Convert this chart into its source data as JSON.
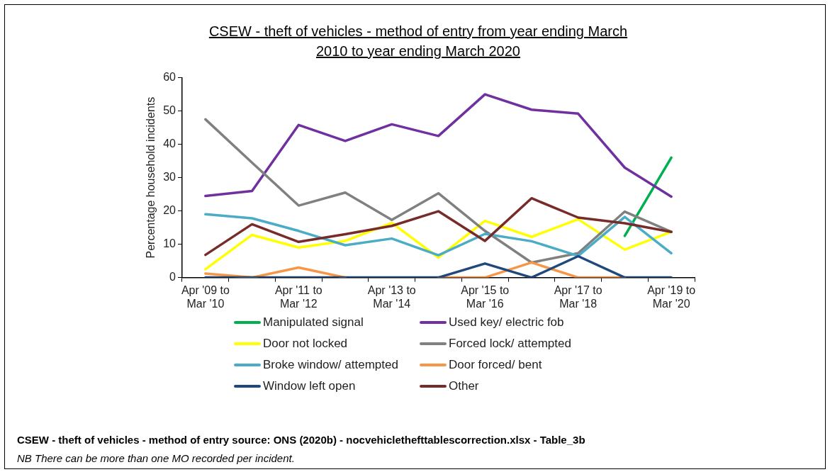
{
  "chart_data": {
    "type": "line",
    "title": "CSEW - theft of vehicles - method of entry from year ending March 2010 to year ending March 2020",
    "ylabel": "Percentage household incidents",
    "categories": [
      "Apr '09 to Mar '10",
      null,
      "Apr '11 to Mar '12",
      null,
      "Apr '13 to Mar '14",
      null,
      "Apr '15 to Mar '16",
      null,
      "Apr '17 to Mar '18",
      null,
      "Apr '19 to Mar '20"
    ],
    "series": [
      {
        "name": "Manipulated signal",
        "color": "#00b050",
        "values": [
          null,
          null,
          null,
          null,
          null,
          null,
          null,
          null,
          null,
          12.5,
          36
        ]
      },
      {
        "name": "Used key/ electric fob",
        "color": "#7030a0",
        "values": [
          24.5,
          26,
          45.8,
          41,
          46,
          42.5,
          55,
          50.4,
          49.2,
          33,
          24.3
        ]
      },
      {
        "name": "Door not locked",
        "color": "#ffff00",
        "values": [
          2.5,
          12.8,
          9,
          11,
          16.4,
          6,
          17,
          12.2,
          17.5,
          8.4,
          13.7
        ]
      },
      {
        "name": "Forced lock/ attempted",
        "color": "#808080",
        "values": [
          47.5,
          34.5,
          21.6,
          25.5,
          17.3,
          25.3,
          14,
          4.5,
          7.3,
          19.8,
          13.7
        ]
      },
      {
        "name": "Broke window/ attempted",
        "color": "#4bacc6",
        "values": [
          19,
          17.8,
          14,
          9.7,
          11.7,
          6.7,
          13.1,
          10.9,
          6.5,
          18.2,
          7.3
        ]
      },
      {
        "name": "Door forced/ bent",
        "color": "#f79646",
        "values": [
          1.2,
          0,
          3,
          0,
          null,
          0,
          0,
          4.5,
          0,
          0,
          null
        ]
      },
      {
        "name": "Window left open",
        "color": "#1f497d",
        "values": [
          0,
          0,
          0,
          0,
          0,
          0,
          4.2,
          0,
          6.4,
          0,
          0
        ]
      },
      {
        "name": "Other",
        "color": "#772c2a",
        "values": [
          6.8,
          16,
          10.7,
          13,
          15.5,
          19.9,
          11,
          23.8,
          18,
          16.3,
          13.7
        ]
      }
    ],
    "ylim": [
      0,
      60
    ],
    "yticks": [
      0,
      10,
      20,
      30,
      40,
      50,
      60
    ],
    "grid": false,
    "legend": "bottom",
    "marker": "none",
    "line_style": "solid",
    "annotations": [
      "CSEW - theft of vehicles - method of entry source: ONS (2020b) - nocvehiclethefttablescorrection.xlsx - Table_3b",
      "NB There can be more than one MO recorded per incident."
    ]
  }
}
